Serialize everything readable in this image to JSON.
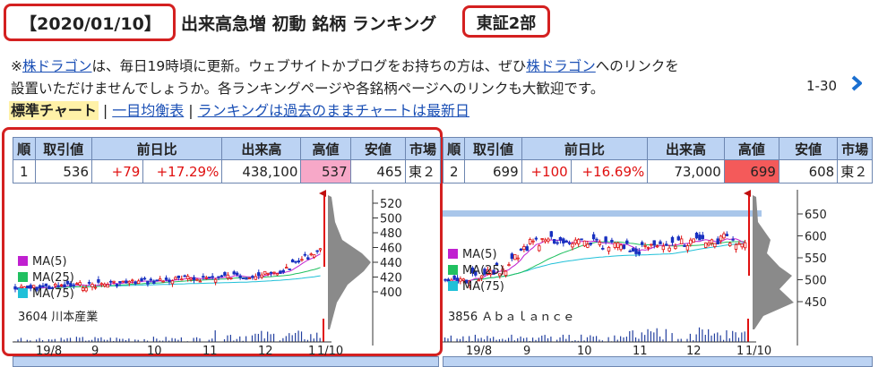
{
  "header": {
    "date": "【2020/01/10】",
    "title": "出来高急増 初動 銘柄 ランキング",
    "market": "東証2部"
  },
  "notice": {
    "prefix": "※",
    "link1": "株ドラゴン",
    "text1": "は、毎日19時頃に更新。ウェブサイトかブログをお持ちの方は、ぜひ",
    "link2": "株ドラゴン",
    "text2": "へのリンクを",
    "line2": "設置いただけませんでしょうか。各ランキングページや各銘柄ページへのリンクも大歓迎です。"
  },
  "pager": {
    "label": "1-30",
    "icon": "chevron-right-icon"
  },
  "view_links": {
    "standard": "標準チャート",
    "ichimoku": "一目均衡表",
    "past": "ランキングは過去のままチャートは最新日",
    "separator": "|"
  },
  "table_headers": [
    "順",
    "取引値",
    "前日比",
    "出来高",
    "高値",
    "安値",
    "市場"
  ],
  "stocks": [
    {
      "rank": "1",
      "price": "536",
      "change": "+79",
      "change_pct": "+17.29%",
      "volume": "438,100",
      "high": "537",
      "low": "465",
      "market": "東２",
      "high_color": "#f7a8c8",
      "chart_label": "3604 川本産業",
      "y_ticks": [
        "520",
        "500",
        "480",
        "460",
        "440",
        "420",
        "400"
      ],
      "x_ticks": [
        "19/8",
        "9",
        "10",
        "11",
        "12",
        "1",
        "1/10"
      ],
      "legend": [
        "MA(5)",
        "MA(25)",
        "MA(75)"
      ]
    },
    {
      "rank": "2",
      "price": "699",
      "change": "+100",
      "change_pct": "+16.69%",
      "volume": "73,000",
      "high": "699",
      "low": "608",
      "market": "東２",
      "high_color": "#f45a5a",
      "chart_label": "3856 Ａｂａｌａｎｃｅ",
      "y_ticks": [
        "650",
        "600",
        "550",
        "500",
        "450"
      ],
      "x_ticks": [
        "19/8",
        "9",
        "10",
        "11",
        "12",
        "1",
        "1/10"
      ],
      "legend": [
        "MA(5)",
        "MA(25)",
        "MA(75)"
      ]
    }
  ],
  "colors": {
    "ma5": "#c020d0",
    "ma25": "#20c060",
    "ma75": "#20c0d8",
    "up": "#e01010",
    "down": "#1830c0",
    "highlight_box": "#d42020"
  }
}
